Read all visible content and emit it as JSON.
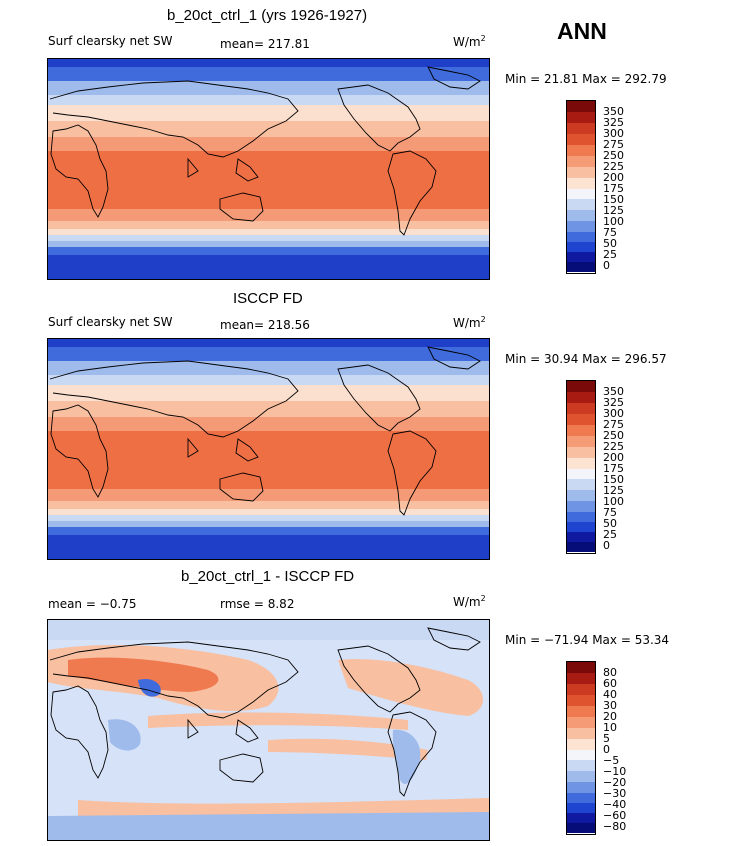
{
  "season": "ANN",
  "panels": [
    {
      "title": "b_20ct_ctrl_1 (yrs 1926-1927)",
      "variable": "Surf clearsky net SW",
      "stat1": "mean= 217.81",
      "stat2": "",
      "units": "W/m",
      "units_sup": "2",
      "minmax": "Min =  21.81 Max = 292.79",
      "levels": [
        "350",
        "325",
        "300",
        "275",
        "250",
        "225",
        "200",
        "175",
        "150",
        "125",
        "100",
        "75",
        "50",
        "25",
        "0"
      ]
    },
    {
      "title": "ISCCP FD",
      "variable": "Surf clearsky net SW",
      "stat1": "mean= 218.56",
      "stat2": "",
      "units": "W/m",
      "units_sup": "2",
      "minmax": "Min =  30.94 Max = 296.57",
      "levels": [
        "350",
        "325",
        "300",
        "275",
        "250",
        "225",
        "200",
        "175",
        "150",
        "125",
        "100",
        "75",
        "50",
        "25",
        "0"
      ]
    },
    {
      "title": "b_20ct_ctrl_1 - ISCCP FD",
      "variable": "",
      "stat1": "mean =  −0.75",
      "stat2": "rmse =   8.82",
      "units": "W/m",
      "units_sup": "2",
      "minmax": "Min = −71.94 Max =  53.34",
      "levels": [
        "80",
        "60",
        "40",
        "30",
        "20",
        "10",
        "5",
        "0",
        "−5",
        "−10",
        "−20",
        "−30",
        "−40",
        "−60",
        "−80"
      ]
    }
  ],
  "colors": {
    "colorbar": [
      "#7a0a0a",
      "#a81b12",
      "#cc3a22",
      "#e0532f",
      "#ef7a50",
      "#f59b76",
      "#f8bfa0",
      "#fce3d2",
      "#f3f5fb",
      "#c9d8f3",
      "#9ebbec",
      "#6f94e3",
      "#3f6bdc",
      "#1f44cf",
      "#101aa0",
      "#070d78"
    ],
    "map_hot": "#ef6f45",
    "map_warm": "#f59a76",
    "map_neutral": "#fbe0cf",
    "map_cool": "#c9d8f3",
    "map_cold": "#3f6bdc",
    "map_coldest": "#1f3fc8",
    "diff_pos": "#f8bfa0",
    "diff_neg": "#d6e2f7",
    "coast": "#000000"
  }
}
